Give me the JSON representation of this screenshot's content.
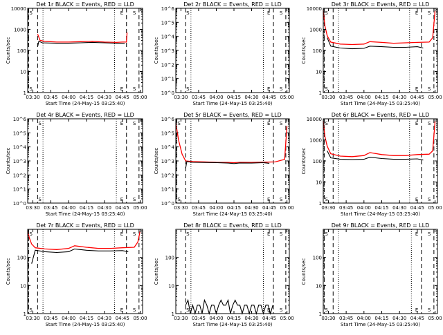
{
  "chart_data": [
    {
      "type": "line",
      "title": "Det 1r BLACK = Events, RED = LLD",
      "xlabel": "Start Time (24-May-15 03:25:40)",
      "ylabel": "Counts/sec",
      "scale": "log",
      "ylim": [
        1,
        10000
      ],
      "ytick_labels": [
        "1",
        "10",
        "100",
        "1000",
        "10000"
      ],
      "xlim": [
        "03:25:40",
        "05:02:00"
      ],
      "xtick_labels": [
        "03:30",
        "03:45",
        "04:00",
        "04:15",
        "04:30",
        "04:45",
        "05:00"
      ],
      "markers": [
        {
          "label": "S",
          "time": "03:26:30",
          "style": "dashed"
        },
        {
          "label": "",
          "time": "03:34:00",
          "style": "dashed"
        },
        {
          "label": "",
          "time": "03:38:30",
          "style": "dotted"
        },
        {
          "label": "",
          "time": "04:38:30",
          "style": "dotted"
        },
        {
          "label": "E",
          "time": "04:48:30",
          "style": "dashed"
        },
        {
          "label": "S",
          "time": "04:59:00",
          "style": "dashed"
        }
      ],
      "series": [
        {
          "color": "#ff0000",
          "x": [
            "03:34:00",
            "03:36:00",
            "03:40:00",
            "03:50:00",
            "04:00:00",
            "04:10:00",
            "04:20:00",
            "04:30:00",
            "04:40:00",
            "04:45:00",
            "04:48:30",
            "04:49:00"
          ],
          "y": [
            600,
            300,
            270,
            250,
            250,
            260,
            270,
            250,
            240,
            250,
            250,
            700
          ]
        },
        {
          "color": "#000000",
          "x": [
            "03:34:00",
            "03:35:00",
            "03:38:00",
            "03:50:00",
            "04:00:00",
            "04:10:00",
            "04:20:00",
            "04:30:00",
            "04:40:00",
            "04:45:00",
            "04:47:00"
          ],
          "y": [
            150,
            270,
            230,
            220,
            220,
            230,
            240,
            230,
            220,
            220,
            210
          ]
        }
      ]
    },
    {
      "type": "line",
      "title": "Det 2r BLACK = Events, RED = LLD",
      "xlabel": "Start Time (24-May-15 03:25:40)",
      "ylabel": "Counts/sec",
      "scale": "log",
      "ylim": [
        1,
        1000000
      ],
      "ytick_labels": [
        "10^0",
        "10^1",
        "10^2",
        "10^3",
        "10^4",
        "10^5",
        "10^6"
      ],
      "xlim": [
        "03:25:40",
        "05:02:00"
      ],
      "xtick_labels": [
        "03:30",
        "03:45",
        "04:00",
        "04:15",
        "04:30",
        "04:45",
        "05:00"
      ],
      "markers": [
        {
          "label": "S",
          "time": "03:34:00",
          "style": "dashed"
        },
        {
          "label": "",
          "time": "03:38:30",
          "style": "dotted"
        },
        {
          "label": "",
          "time": "04:40:00",
          "style": "dotted"
        },
        {
          "label": "E",
          "time": "04:48:30",
          "style": "dashed"
        },
        {
          "label": "S",
          "time": "04:59:00",
          "style": "dashed"
        }
      ],
      "series": []
    },
    {
      "type": "line",
      "title": "Det 3r BLACK = Events, RED = LLD",
      "xlabel": "Start Time (24-May-15 03:25:40)",
      "ylabel": "Counts/sec",
      "scale": "log",
      "ylim": [
        1,
        10000
      ],
      "ytick_labels": [
        "1",
        "10",
        "100",
        "1000",
        "10000"
      ],
      "xlim": [
        "03:25:40",
        "05:02:00"
      ],
      "xtick_labels": [
        "03:30",
        "03:45",
        "04:00",
        "04:15",
        "04:30",
        "04:45",
        "05:00"
      ],
      "markers": [
        {
          "label": "S",
          "time": "03:26:30",
          "style": "dashed"
        },
        {
          "label": "",
          "time": "03:34:00",
          "style": "dashed"
        },
        {
          "label": "",
          "time": "03:38:30",
          "style": "dotted"
        },
        {
          "label": "",
          "time": "04:38:30",
          "style": "dotted"
        },
        {
          "label": "E",
          "time": "04:48:30",
          "style": "dashed"
        },
        {
          "label": "S",
          "time": "04:59:00",
          "style": "dashed"
        }
      ],
      "series": [
        {
          "color": "#ff0000",
          "x": [
            "03:25:40",
            "03:27:00",
            "03:29:00",
            "03:32:00",
            "03:40:00",
            "03:50:00",
            "04:00:00",
            "04:05:00",
            "04:15:00",
            "04:25:00",
            "04:35:00",
            "04:45:00",
            "04:55:00",
            "04:58:00",
            "05:00:00"
          ],
          "y": [
            8000,
            1500,
            500,
            250,
            200,
            190,
            200,
            260,
            240,
            220,
            230,
            240,
            250,
            400,
            8000
          ]
        },
        {
          "color": "#000000",
          "x": [
            "03:29:00",
            "03:32:00",
            "03:40:00",
            "03:50:00",
            "04:00:00",
            "04:05:00",
            "04:15:00",
            "04:25:00",
            "04:35:00",
            "04:45:00",
            "04:50:00"
          ],
          "y": [
            400,
            160,
            130,
            120,
            125,
            160,
            150,
            140,
            140,
            150,
            130
          ]
        }
      ]
    },
    {
      "type": "line",
      "title": "Det 4r BLACK = Events, RED = LLD",
      "xlabel": "Start Time (24-May-15 03:25:40)",
      "ylabel": "Counts/sec",
      "scale": "log",
      "ylim": [
        1,
        1000000
      ],
      "ytick_labels": [
        "10^0",
        "10^1",
        "10^2",
        "10^3",
        "10^4",
        "10^5",
        "10^6"
      ],
      "xlim": [
        "03:25:40",
        "05:02:00"
      ],
      "xtick_labels": [
        "03:30",
        "03:45",
        "04:00",
        "04:15",
        "04:30",
        "04:45",
        "05:00"
      ],
      "markers": [
        {
          "label": "S",
          "time": "03:34:00",
          "style": "dashed"
        },
        {
          "label": "",
          "time": "03:38:30",
          "style": "dotted"
        },
        {
          "label": "",
          "time": "04:40:00",
          "style": "dotted"
        },
        {
          "label": "E",
          "time": "04:48:30",
          "style": "dashed"
        },
        {
          "label": "S",
          "time": "04:59:00",
          "style": "dashed"
        }
      ],
      "series": []
    },
    {
      "type": "line",
      "title": "Det 5r BLACK = Events, RED = LLD",
      "xlabel": "Start Time (24-May-15 03:25:40)",
      "ylabel": "Counts/sec",
      "scale": "log",
      "ylim": [
        1,
        1000000
      ],
      "ytick_labels": [
        "10^0",
        "10^1",
        "10^2",
        "10^3",
        "10^4",
        "10^5",
        "10^6"
      ],
      "xlim": [
        "03:25:40",
        "05:02:00"
      ],
      "xtick_labels": [
        "03:30",
        "03:45",
        "04:00",
        "04:15",
        "04:30",
        "04:45",
        "05:00"
      ],
      "markers": [
        {
          "label": "S",
          "time": "03:26:30",
          "style": "dashed"
        },
        {
          "label": "",
          "time": "03:34:00",
          "style": "dashed"
        },
        {
          "label": "",
          "time": "03:38:30",
          "style": "dotted"
        },
        {
          "label": "",
          "time": "04:40:00",
          "style": "dotted"
        },
        {
          "label": "E",
          "time": "04:48:30",
          "style": "dashed"
        },
        {
          "label": "S",
          "time": "04:59:00",
          "style": "dashed"
        }
      ],
      "series": [
        {
          "color": "#ff0000",
          "x": [
            "03:25:40",
            "03:28:00",
            "03:31:00",
            "03:34:00",
            "03:40:00",
            "03:50:00",
            "04:00:00",
            "04:10:00",
            "04:15:00",
            "04:20:00",
            "04:30:00",
            "04:40:00",
            "04:50:00",
            "04:58:00",
            "05:00:00"
          ],
          "y": [
            500000,
            30000,
            3000,
            1000,
            900,
            850,
            800,
            780,
            750,
            800,
            780,
            820,
            850,
            1300,
            300000
          ]
        },
        {
          "color": "#000000",
          "x": [
            "03:34:00",
            "03:35:00",
            "03:40:00",
            "03:50:00",
            "04:00:00",
            "04:10:00",
            "04:15:00",
            "04:20:00",
            "04:30:00",
            "04:40:00",
            "04:45:00"
          ],
          "y": [
            300,
            900,
            800,
            780,
            760,
            700,
            650,
            720,
            700,
            750,
            680
          ]
        }
      ]
    },
    {
      "type": "line",
      "title": "Det 6r BLACK = Events, RED = LLD",
      "xlabel": "Start Time (24-May-15 03:25:40)",
      "ylabel": "Counts/sec",
      "scale": "log",
      "ylim": [
        1,
        10000
      ],
      "ytick_labels": [
        "1",
        "10",
        "100",
        "1000",
        "10000"
      ],
      "xlim": [
        "03:25:40",
        "05:02:00"
      ],
      "xtick_labels": [
        "03:30",
        "03:45",
        "04:00",
        "04:15",
        "04:30",
        "04:45",
        "05:00"
      ],
      "markers": [
        {
          "label": "S",
          "time": "03:26:30",
          "style": "dashed"
        },
        {
          "label": "",
          "time": "03:34:00",
          "style": "dashed"
        },
        {
          "label": "",
          "time": "03:38:30",
          "style": "dotted"
        },
        {
          "label": "",
          "time": "04:38:30",
          "style": "dotted"
        },
        {
          "label": "E",
          "time": "04:48:30",
          "style": "dashed"
        },
        {
          "label": "S",
          "time": "04:59:00",
          "style": "dashed"
        }
      ],
      "series": [
        {
          "color": "#ff0000",
          "x": [
            "03:25:40",
            "03:27:00",
            "03:29:00",
            "03:32:00",
            "03:40:00",
            "03:50:00",
            "04:00:00",
            "04:05:00",
            "04:15:00",
            "04:25:00",
            "04:35:00",
            "04:45:00",
            "04:55:00",
            "04:58:00",
            "05:00:00"
          ],
          "y": [
            8000,
            1500,
            500,
            220,
            170,
            160,
            180,
            250,
            200,
            180,
            180,
            200,
            210,
            300,
            8000
          ]
        },
        {
          "color": "#000000",
          "x": [
            "03:29:00",
            "03:32:00",
            "03:40:00",
            "03:50:00",
            "04:00:00",
            "04:05:00",
            "04:15:00",
            "04:25:00",
            "04:35:00",
            "04:45:00",
            "04:50:00"
          ],
          "y": [
            300,
            140,
            120,
            115,
            120,
            150,
            130,
            120,
            120,
            125,
            110
          ]
        }
      ]
    },
    {
      "type": "line",
      "title": "Det 7r BLACK = Events, RED = LLD",
      "xlabel": "Start Time (24-May-15 03:25:40)",
      "ylabel": "Counts/sec",
      "scale": "log",
      "ylim": [
        1,
        1000
      ],
      "ytick_labels": [
        "1",
        "10",
        "100"
      ],
      "xlim": [
        "03:25:40",
        "05:02:00"
      ],
      "xtick_labels": [
        "03:30",
        "03:45",
        "04:00",
        "04:15",
        "04:30",
        "04:45",
        "05:00"
      ],
      "markers": [
        {
          "label": "S",
          "time": "03:26:30",
          "style": "dashed"
        },
        {
          "label": "",
          "time": "03:34:00",
          "style": "dashed"
        },
        {
          "label": "",
          "time": "03:38:30",
          "style": "dotted"
        },
        {
          "label": "",
          "time": "04:38:30",
          "style": "dotted"
        },
        {
          "label": "E",
          "time": "04:48:30",
          "style": "dashed"
        },
        {
          "label": "S",
          "time": "04:59:00",
          "style": "dashed"
        }
      ],
      "series": [
        {
          "color": "#ff0000",
          "x": [
            "03:25:40",
            "03:27:00",
            "03:29:00",
            "03:32:00",
            "03:40:00",
            "03:50:00",
            "04:00:00",
            "04:05:00",
            "04:15:00",
            "04:25:00",
            "04:35:00",
            "04:45:00",
            "04:55:00",
            "04:58:00",
            "05:00:00"
          ],
          "y": [
            900,
            500,
            300,
            220,
            200,
            190,
            210,
            260,
            230,
            210,
            210,
            220,
            230,
            350,
            900
          ]
        },
        {
          "color": "#000000",
          "x": [
            "03:29:00",
            "03:32:00",
            "03:40:00",
            "03:50:00",
            "04:00:00",
            "04:05:00",
            "04:15:00",
            "04:25:00",
            "04:35:00",
            "04:45:00",
            "04:50:00"
          ],
          "y": [
            60,
            180,
            160,
            150,
            160,
            200,
            180,
            170,
            170,
            175,
            160
          ]
        }
      ]
    },
    {
      "type": "line",
      "title": "Det 8r BLACK = Events, RED = LLD",
      "xlabel": "Start Time (24-May-15 03:25:40)",
      "ylabel": "Counts/sec",
      "scale": "log",
      "ylim": [
        1,
        1000
      ],
      "ytick_labels": [
        "1",
        "10",
        "100"
      ],
      "xlim": [
        "03:25:40",
        "05:02:00"
      ],
      "xtick_labels": [
        "03:30",
        "03:45",
        "04:00",
        "04:15",
        "04:30",
        "04:45",
        "05:00"
      ],
      "markers": [
        {
          "label": "S",
          "time": "03:34:00",
          "style": "dashed"
        },
        {
          "label": "",
          "time": "03:38:30",
          "style": "dotted"
        },
        {
          "label": "",
          "time": "04:40:00",
          "style": "dotted"
        },
        {
          "label": "E",
          "time": "04:48:30",
          "style": "dashed"
        },
        {
          "label": "S",
          "time": "04:59:00",
          "style": "dashed"
        }
      ],
      "series": [
        {
          "color": "#000000",
          "x": [
            "03:34:00",
            "03:36:00",
            "03:38:00",
            "03:40:00",
            "03:42:00",
            "03:44:00",
            "03:46:00",
            "03:48:00",
            "03:50:00",
            "03:52:00",
            "03:54:00",
            "03:56:00",
            "03:58:00",
            "04:00:00",
            "04:02:00",
            "04:04:00",
            "04:06:00",
            "04:08:00",
            "04:10:00",
            "04:12:00",
            "04:14:00",
            "04:16:00",
            "04:18:00",
            "04:20:00",
            "04:22:00",
            "04:24:00",
            "04:26:00",
            "04:28:00",
            "04:30:00",
            "04:32:00",
            "04:34:00",
            "04:36:00",
            "04:38:00",
            "04:40:00",
            "04:42:00",
            "04:44:00",
            "04:46:00",
            "04:48:00"
          ],
          "y": [
            2,
            3,
            1,
            2,
            1,
            2,
            2,
            1,
            3,
            2,
            1,
            2,
            2,
            1,
            2,
            3,
            2,
            2,
            3,
            1,
            2,
            3,
            2,
            2,
            1,
            2,
            2,
            1,
            2,
            2,
            1,
            2,
            2,
            1,
            2,
            2,
            1,
            2
          ]
        }
      ]
    },
    {
      "type": "line",
      "title": "Det 9r BLACK = Events, RED = LLD",
      "xlabel": "Start Time (24-May-15 03:25:40)",
      "ylabel": "Counts/sec",
      "scale": "log",
      "ylim": [
        1,
        1000
      ],
      "ytick_labels": [
        "1",
        "10",
        "100"
      ],
      "xlim": [
        "03:25:40",
        "05:02:00"
      ],
      "xtick_labels": [
        "03:30",
        "03:45",
        "04:00",
        "04:15",
        "04:30",
        "04:45",
        "05:00"
      ],
      "markers": [
        {
          "label": "S",
          "time": "03:26:30",
          "style": "dashed"
        },
        {
          "label": "",
          "time": "03:34:00",
          "style": "dashed"
        },
        {
          "label": "",
          "time": "03:38:30",
          "style": "dotted"
        },
        {
          "label": "",
          "time": "04:40:00",
          "style": "dotted"
        },
        {
          "label": "E",
          "time": "04:48:30",
          "style": "dashed"
        },
        {
          "label": "S",
          "time": "04:59:00",
          "style": "dashed"
        }
      ],
      "series": []
    }
  ]
}
